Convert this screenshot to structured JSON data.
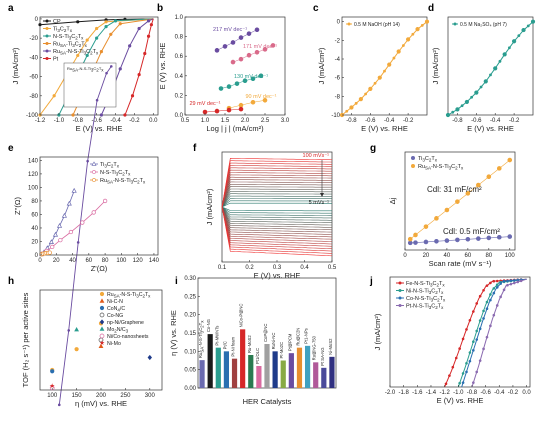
{
  "chart_data": [
    {
      "panel": "a",
      "type": "line",
      "xlabel": "E (V) vs. RHE",
      "ylabel": "J (mA/cm²)",
      "xticks": [
        -1.2,
        -1.0,
        -0.8,
        -0.6,
        -0.4,
        -0.2,
        0.0
      ],
      "yticks": [
        -100,
        -80,
        -60,
        -40,
        -20,
        0
      ],
      "xlim": [
        -1.2,
        0.05
      ],
      "ylim": [
        -100,
        2
      ],
      "legend": "top-left",
      "series": [
        {
          "name": "CP",
          "color": "#1a1a1a",
          "x": [
            -1.2,
            -0.8,
            -0.5,
            -0.3,
            0
          ],
          "y": [
            -6,
            -3,
            -1,
            -0.4,
            0
          ]
        },
        {
          "name": "Ti3C2Tx",
          "color": "#f2a93b",
          "x": [
            -1.2,
            -1.05,
            -0.9,
            -0.8,
            -0.7,
            -0.6,
            -0.5,
            0
          ],
          "y": [
            -100,
            -80,
            -55,
            -38,
            -22,
            -10,
            -3,
            0
          ]
        },
        {
          "name": "N-S-Ti3C2Tx",
          "color": "#2a9d8f",
          "x": [
            -1.0,
            -0.9,
            -0.8,
            -0.7,
            -0.6,
            -0.5,
            -0.4,
            0
          ],
          "y": [
            -100,
            -80,
            -58,
            -38,
            -20,
            -8,
            -2,
            0
          ]
        },
        {
          "name": "RuSA-Ti3C2Tx",
          "color": "#e88e2e",
          "x": [
            -0.85,
            -0.75,
            -0.65,
            -0.55,
            -0.45,
            -0.35,
            0
          ],
          "y": [
            -100,
            -78,
            -56,
            -34,
            -16,
            -5,
            0
          ]
        },
        {
          "name": "RuSA-N-S-Ti3C2Tx",
          "color": "#6a4ca0",
          "x": [
            -0.55,
            -0.45,
            -0.35,
            -0.25,
            -0.15,
            -0.05,
            0
          ],
          "y": [
            -100,
            -78,
            -52,
            -28,
            -10,
            -2,
            0
          ]
        },
        {
          "name": "Pt",
          "color": "#d62728",
          "x": [
            -0.3,
            -0.22,
            -0.15,
            -0.09,
            -0.05,
            -0.02,
            0
          ],
          "y": [
            -100,
            -80,
            -58,
            -36,
            -18,
            -6,
            0
          ]
        }
      ]
    },
    {
      "panel": "b",
      "type": "scatter",
      "xlabel": "Log | j | (mA/cm²)",
      "ylabel": "E (V) vs. RHE",
      "xticks": [
        0.5,
        1.0,
        1.5,
        2.0,
        2.5,
        3.0
      ],
      "yticks": [
        0.0,
        0.2,
        0.4,
        0.6,
        0.8,
        1.0
      ],
      "xlim": [
        0.5,
        3.0
      ],
      "ylim": [
        0,
        1.0
      ],
      "series": [
        {
          "label": "217 mV dec⁻¹",
          "color": "#6a4ca0",
          "x": [
            1.3,
            1.5,
            1.7,
            1.9,
            2.1,
            2.3
          ],
          "y": [
            0.66,
            0.7,
            0.74,
            0.79,
            0.83,
            0.87
          ]
        },
        {
          "label": "171 mV dec⁻¹",
          "color": "#d96a8a",
          "x": [
            1.7,
            1.9,
            2.1,
            2.3,
            2.5,
            2.7
          ],
          "y": [
            0.54,
            0.57,
            0.61,
            0.64,
            0.67,
            0.71
          ]
        },
        {
          "label": "130 mV dec⁻¹",
          "color": "#2a9d8f",
          "x": [
            1.4,
            1.6,
            1.8,
            2.0,
            2.2,
            2.4
          ],
          "y": [
            0.27,
            0.29,
            0.32,
            0.35,
            0.37,
            0.4
          ]
        },
        {
          "label": "90 mV dec⁻¹",
          "color": "#f2a93b",
          "x": [
            1.6,
            1.9,
            2.2,
            2.5
          ],
          "y": [
            0.07,
            0.1,
            0.13,
            0.15
          ]
        },
        {
          "label": "29 mV dec⁻¹",
          "color": "#d62728",
          "x": [
            1.0,
            1.3,
            1.6,
            1.9
          ],
          "y": [
            0.03,
            0.04,
            0.05,
            0.06
          ]
        }
      ]
    },
    {
      "panel": "c",
      "type": "line",
      "title": "0.5 M NaOH (pH 14)",
      "xlabel": "E (V) vs. RHE",
      "ylabel": "J (mA/cm²)",
      "xticks": [
        -0.8,
        -0.6,
        -0.4,
        -0.2
      ],
      "yticks": [
        -10,
        -8,
        -6,
        -4,
        -2,
        0
      ],
      "xlim": [
        -0.9,
        0.0
      ],
      "ylim": [
        -10,
        0.5
      ],
      "series": [
        {
          "color": "#f2a93b",
          "x": [
            -0.9,
            -0.8,
            -0.7,
            -0.6,
            -0.5,
            -0.4,
            -0.3,
            -0.2,
            -0.1,
            0
          ],
          "y": [
            -10,
            -9.2,
            -8.3,
            -7.2,
            -6.0,
            -4.6,
            -3.2,
            -1.9,
            -0.8,
            0
          ]
        }
      ]
    },
    {
      "panel": "d",
      "type": "line",
      "title": "0.5 M Na₂SO₄ (pH 7)",
      "xticks": [
        -0.8,
        -0.6,
        -0.4,
        -0.2
      ],
      "xlim": [
        -0.9,
        0.0
      ],
      "ylim": [
        -10,
        0.5
      ],
      "series": [
        {
          "color": "#2a9d8f",
          "x": [
            -0.9,
            -0.8,
            -0.7,
            -0.6,
            -0.5,
            -0.4,
            -0.3,
            -0.2,
            -0.1,
            0
          ],
          "y": [
            -10,
            -9.4,
            -8.6,
            -7.6,
            -6.4,
            -5.0,
            -3.5,
            -2.1,
            -0.9,
            0
          ]
        }
      ]
    },
    {
      "panel": "e",
      "type": "scatter",
      "xlabel": "Z'(Ω)",
      "ylabel": "Z''(Ω)",
      "xticks": [
        0,
        20,
        40,
        60,
        80,
        100,
        120,
        140
      ],
      "yticks": [
        0,
        20,
        40,
        60,
        80,
        100,
        120,
        140
      ],
      "xlim": [
        0,
        145
      ],
      "ylim": [
        0,
        145
      ],
      "series": [
        {
          "name": "Ti3C2Tx",
          "color": "#6a6ab0",
          "marker": "triangle",
          "x": [
            2,
            5,
            9,
            14,
            19,
            24,
            30,
            36,
            42
          ],
          "y": [
            1,
            4,
            10,
            19,
            30,
            43,
            58,
            76,
            95
          ]
        },
        {
          "name": "N-S-Ti3C2Tx",
          "color": "#d96aa0",
          "marker": "circle",
          "x": [
            3,
            8,
            15,
            25,
            38,
            52,
            66,
            80
          ],
          "y": [
            2,
            6,
            12,
            22,
            34,
            48,
            63,
            80
          ]
        },
        {
          "name": "RuSA-N-S-Ti3C2Tx",
          "color": "#e88e2e",
          "marker": "circle",
          "x": [
            2,
            4,
            6,
            8,
            10,
            12
          ],
          "y": [
            1,
            2,
            2.5,
            3,
            3,
            3.5
          ]
        }
      ]
    },
    {
      "panel": "f",
      "type": "line",
      "xlabel": "E (V) vs. RHE",
      "ylabel": "J (mA/cm²)",
      "xticks": [
        0.1,
        0.2,
        0.3,
        0.4,
        0.5
      ],
      "xlim": [
        0.1,
        0.5
      ],
      "annotations": [
        "100 mVs⁻¹",
        "5 mVs⁻¹"
      ]
    },
    {
      "panel": "g",
      "type": "scatter",
      "xlabel": "Scan rate (mV s⁻¹)",
      "ylabel": "Δj",
      "xticks": [
        0,
        20,
        40,
        60,
        80,
        100
      ],
      "xlim": [
        0,
        105
      ],
      "ylim": [
        -0.5,
        6.8
      ],
      "series": [
        {
          "name": "Ti3C2Tx",
          "color": "#6a6ab0",
          "x": [
            5,
            10,
            20,
            30,
            40,
            50,
            60,
            70,
            80,
            90,
            100
          ],
          "y": [
            0.03,
            0.05,
            0.1,
            0.15,
            0.2,
            0.25,
            0.3,
            0.35,
            0.4,
            0.45,
            0.5
          ]
        },
        {
          "name": "RuSA-N-S-Ti3C2Tx",
          "color": "#f2a93b",
          "x": [
            5,
            10,
            20,
            30,
            40,
            50,
            60,
            70,
            80,
            90,
            100
          ],
          "y": [
            0.31,
            0.62,
            1.24,
            1.86,
            2.48,
            3.1,
            3.72,
            4.34,
            4.96,
            5.58,
            6.2
          ]
        }
      ],
      "annotations": [
        "Cdl: 31 mF/cm²",
        "Cdl: 0.5 mF/cm²"
      ]
    },
    {
      "panel": "h",
      "type": "scatter",
      "xlabel": "η (mV) vs. RHE",
      "ylabel": "TOF (H₂ s⁻¹) per active sites",
      "xticks": [
        100,
        150,
        200,
        250,
        300
      ],
      "xlim": [
        75,
        325
      ],
      "ylim": [
        0,
        2.4
      ],
      "series": [
        {
          "name": "RuSA-N-S-Ti3C2Tx",
          "color": "#f2a93b",
          "marker": "circle",
          "x": [
            100,
            150,
            200
          ],
          "y": [
            0.48,
            0.98,
            1.6
          ]
        },
        {
          "name": "Ni-C-N",
          "color": "#e05a1a",
          "marker": "triangle",
          "x": [
            200
          ],
          "y": [
            1.05
          ]
        },
        {
          "name": "CoN4/C",
          "color": "#2a6fb0",
          "marker": "circle",
          "x": [
            100
          ],
          "y": [
            0.45
          ]
        },
        {
          "name": "Co-NG",
          "color": "#555555",
          "marker": "circle-open",
          "x": [
            200
          ],
          "y": [
            1.2
          ]
        },
        {
          "name": "np-Ni/Graphene",
          "color": "#1f3b8a",
          "marker": "diamond",
          "x": [
            300
          ],
          "y": [
            0.78
          ]
        },
        {
          "name": "Mo2N/C3",
          "color": "#2a9d8f",
          "marker": "triangle",
          "x": [
            150
          ],
          "y": [
            1.45
          ]
        },
        {
          "name": "Ni/Co-nanosheets",
          "color": "#d96aa0",
          "marker": "circle-open",
          "x": [
            100
          ],
          "y": [
            0.05
          ]
        },
        {
          "name": "Ni-Mo",
          "color": "#d62728",
          "marker": "star",
          "x": [
            100
          ],
          "y": [
            0.1
          ]
        }
      ]
    },
    {
      "panel": "i",
      "type": "bar",
      "xlabel": "HER Catalysts",
      "ylabel": "η (V) vs. RHE",
      "yticks": [
        0.0,
        0.05,
        0.1,
        0.15,
        0.2,
        0.25,
        0.3
      ],
      "ylim": [
        0,
        0.3
      ],
      "categories": [
        "RuSA-N-S-Ti3C2Tx",
        "Co-NG",
        "Pt-MWNTs",
        "Pt/C",
        "Pt-Ni foam",
        "NiCo-P@NC",
        "Ru-MoS2",
        "Pt1/OLC",
        "CoP@NC",
        "RuNi-NC",
        "Pt-Mo2C",
        "Pt@PCM",
        "Ru@C2N",
        "Pt1-NPs",
        "Ru@NG-750",
        "Pt SA-NG",
        "Ni-MoS2"
      ],
      "values": [
        0.076,
        0.147,
        0.11,
        0.1,
        0.08,
        0.16,
        0.09,
        0.06,
        0.12,
        0.1,
        0.075,
        0.095,
        0.11,
        0.115,
        0.07,
        0.055,
        0.085
      ],
      "colors": [
        "#6a6ab0",
        "#1a1a1a",
        "#2a9d8f",
        "#2a6fb0",
        "#a04040",
        "#d62728",
        "#2a7a50",
        "#d96aa0",
        "#a0a0a0",
        "#1f3b8a",
        "#88aa44",
        "#6a4ca0",
        "#e88e2e",
        "#40a0c0",
        "#b05a9a",
        "#4a4a9a",
        "#303080"
      ]
    },
    {
      "panel": "j",
      "type": "line",
      "xlabel": "E (V) vs. RHE",
      "ylabel": "J (mA/cm²)",
      "xticks": [
        -2.0,
        -1.8,
        -1.6,
        -1.4,
        -1.2,
        -1.0,
        -0.8,
        -0.6,
        -0.4,
        -0.2,
        0.0
      ],
      "xlim": [
        -2.0,
        0.05
      ],
      "ylim": [
        -100,
        2
      ],
      "series": [
        {
          "name": "Fe-N-S-Ti3C2Tx",
          "color": "#d62728",
          "x": [
            -1.2,
            -1.1,
            -1.0,
            -0.9,
            -0.8,
            -0.7,
            -0.6,
            -0.5,
            0
          ],
          "y": [
            -100,
            -85,
            -68,
            -50,
            -33,
            -18,
            -7,
            -2,
            0
          ]
        },
        {
          "name": "Ni-N-S-Ti3C2Tx",
          "color": "#2a9d8f",
          "x": [
            -1.0,
            -0.9,
            -0.8,
            -0.7,
            -0.6,
            -0.5,
            -0.4,
            0
          ],
          "y": [
            -100,
            -82,
            -62,
            -42,
            -24,
            -10,
            -3,
            0
          ]
        },
        {
          "name": "Co-N-S-Ti3C2Tx",
          "color": "#2a6fb0",
          "x": [
            -0.95,
            -0.85,
            -0.75,
            -0.65,
            -0.55,
            -0.45,
            -0.35,
            0
          ],
          "y": [
            -100,
            -80,
            -60,
            -40,
            -22,
            -9,
            -2,
            0
          ]
        },
        {
          "name": "Pt-N-S-Ti3C2Tx",
          "color": "#8a6ab0",
          "x": [
            -0.8,
            -0.7,
            -0.6,
            -0.5,
            -0.4,
            -0.3,
            0
          ],
          "y": [
            -100,
            -80,
            -58,
            -37,
            -19,
            -6,
            0
          ]
        }
      ]
    }
  ],
  "panel_letters": [
    "a",
    "b",
    "c",
    "d",
    "e",
    "f",
    "g",
    "h",
    "i",
    "j"
  ],
  "pt_label": "Pt",
  "ru_sa": "Ru",
  "sa_sub": "SA"
}
